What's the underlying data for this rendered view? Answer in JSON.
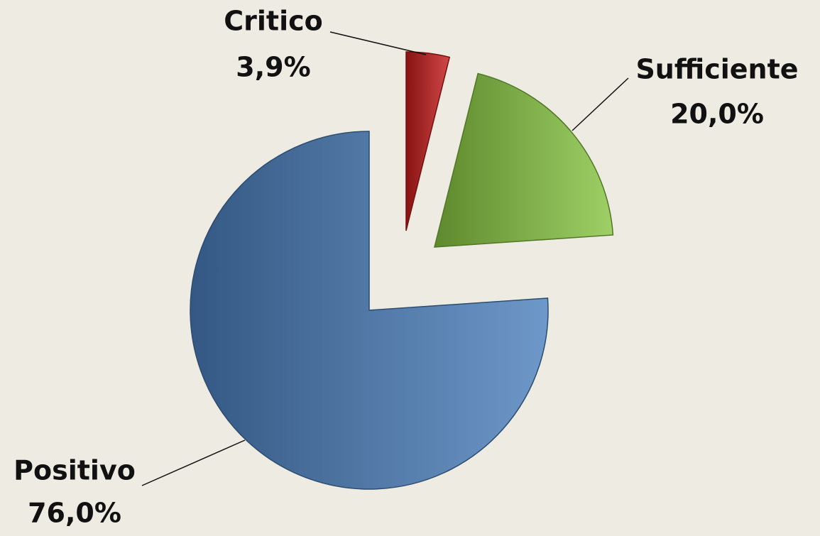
{
  "chart_data": {
    "type": "pie",
    "categories": [
      "Critico",
      "Sufficiente",
      "Positivo"
    ],
    "values": [
      3.9,
      20.0,
      76.0
    ],
    "value_labels": [
      "3,9%",
      "20,0%",
      "76,0%"
    ],
    "colors": [
      "#c41a1a",
      "#86c440",
      "#4a7ebb"
    ]
  }
}
